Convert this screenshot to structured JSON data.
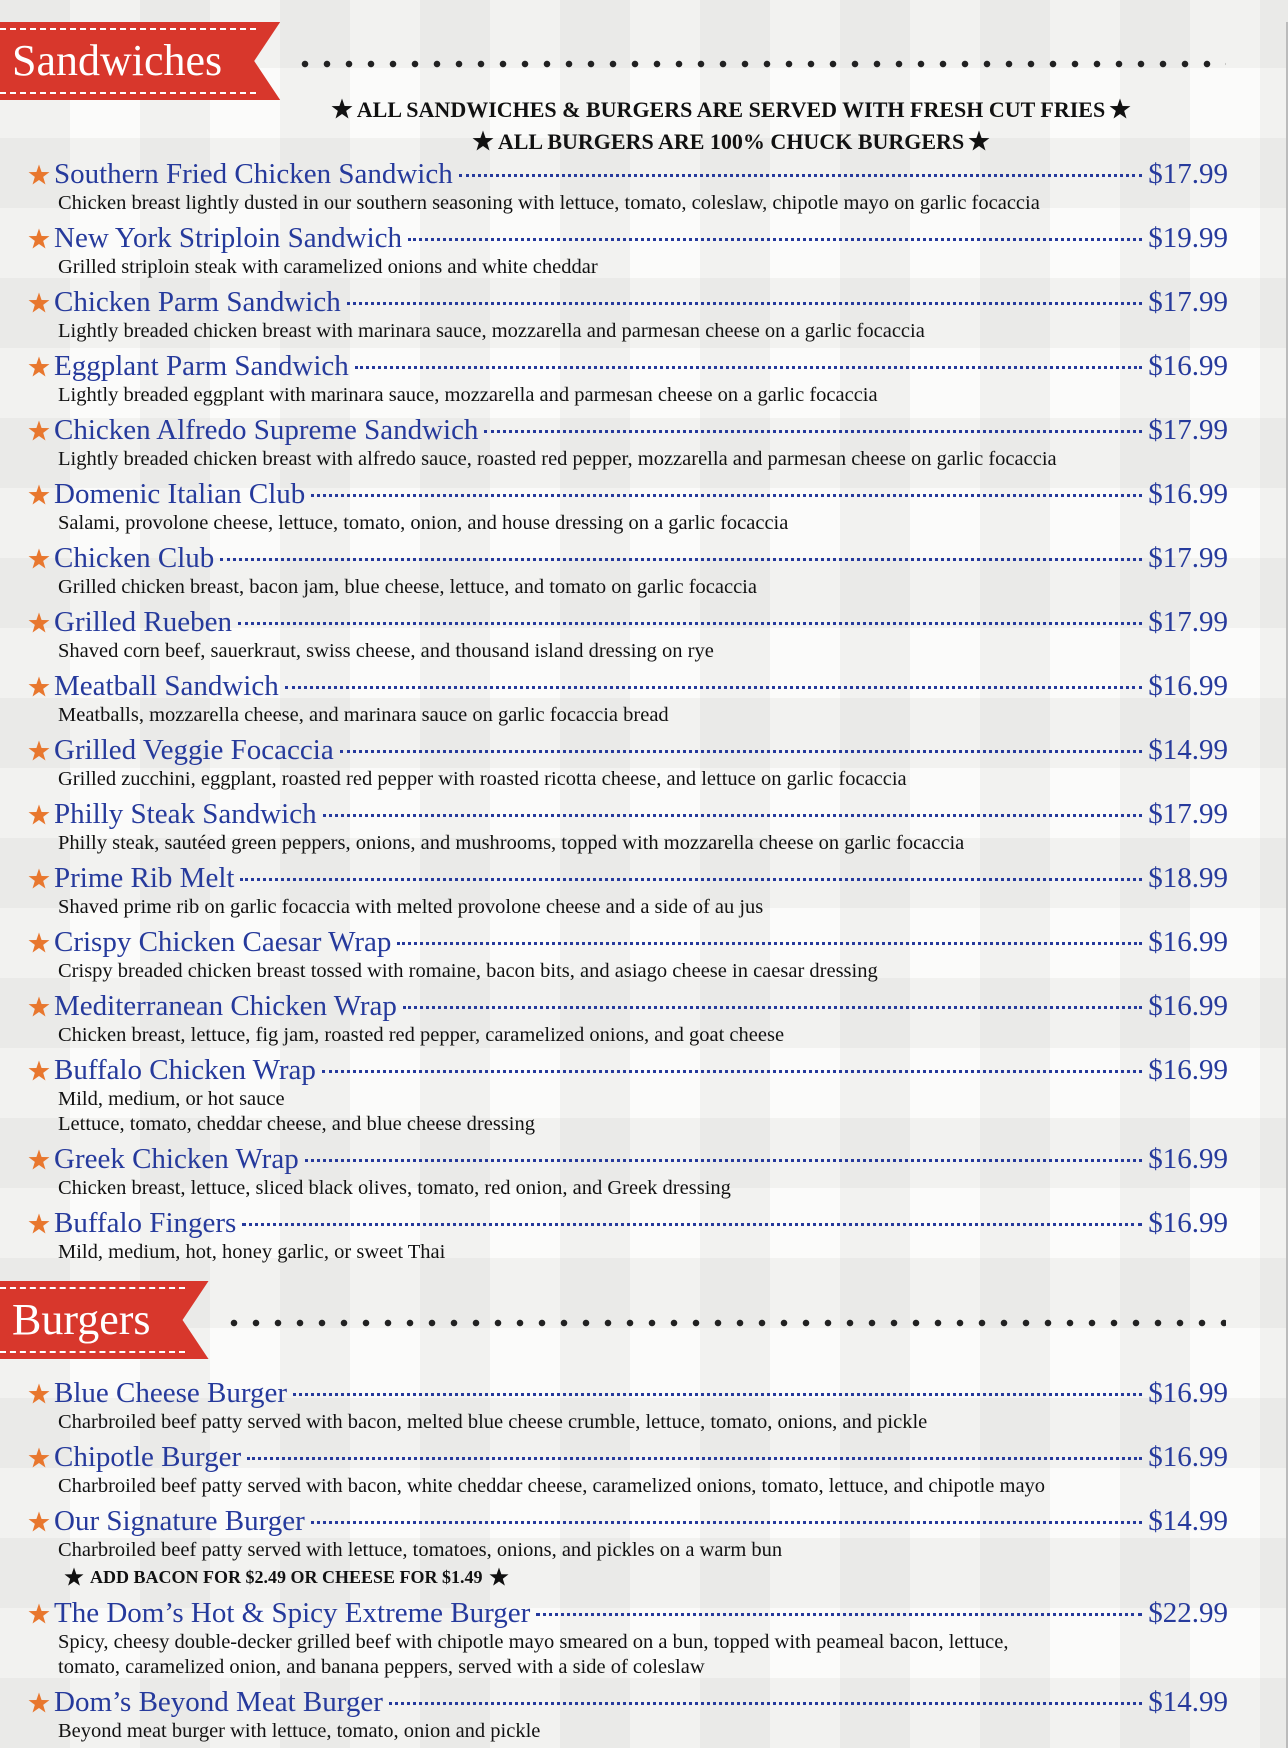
{
  "sections": [
    {
      "title": "Sandwiches",
      "notes": [
        "ALL SANDWICHES & BURGERS ARE SERVED WITH FRESH CUT FRIES",
        "ALL BURGERS ARE 100% CHUCK BURGERS"
      ],
      "items": [
        {
          "name": "Southern Fried Chicken Sandwich",
          "price": "$17.99",
          "description": [
            "Chicken breast lightly dusted in our southern seasoning with lettuce, tomato, coleslaw, chipotle mayo on garlic focaccia"
          ]
        },
        {
          "name": "New York Striploin Sandwich",
          "price": "$19.99",
          "description": [
            "Grilled striploin steak with caramelized onions and white cheddar"
          ]
        },
        {
          "name": "Chicken Parm Sandwich",
          "price": "$17.99",
          "description": [
            "Lightly breaded chicken breast with marinara sauce, mozzarella and parmesan cheese on a garlic focaccia"
          ]
        },
        {
          "name": "Eggplant Parm Sandwich",
          "price": "$16.99",
          "description": [
            "Lightly breaded eggplant with marinara sauce, mozzarella and parmesan cheese on a garlic focaccia"
          ]
        },
        {
          "name": "Chicken Alfredo Supreme Sandwich",
          "price": "$17.99",
          "description": [
            "Lightly breaded chicken breast with alfredo sauce, roasted red pepper, mozzarella and parmesan cheese on garlic focaccia"
          ]
        },
        {
          "name": "Domenic Italian Club",
          "price": "$16.99",
          "description": [
            "Salami, provolone cheese, lettuce, tomato, onion, and house dressing on a garlic focaccia"
          ]
        },
        {
          "name": "Chicken Club",
          "price": "$17.99",
          "description": [
            "Grilled chicken breast, bacon jam, blue cheese, lettuce, and tomato on garlic focaccia"
          ]
        },
        {
          "name": "Grilled Rueben",
          "price": "$17.99",
          "description": [
            "Shaved corn beef, sauerkraut, swiss cheese, and thousand island dressing on rye"
          ]
        },
        {
          "name": "Meatball Sandwich",
          "price": "$16.99",
          "description": [
            "Meatballs, mozzarella cheese, and marinara sauce on garlic focaccia bread"
          ]
        },
        {
          "name": "Grilled Veggie Focaccia",
          "price": "$14.99",
          "description": [
            "Grilled zucchini, eggplant, roasted red pepper with roasted ricotta cheese, and lettuce on garlic focaccia"
          ]
        },
        {
          "name": "Philly Steak Sandwich",
          "price": "$17.99",
          "description": [
            "Philly steak, sautéed green peppers, onions, and mushrooms, topped with mozzarella cheese on garlic focaccia"
          ]
        },
        {
          "name": "Prime Rib Melt",
          "price": "$18.99",
          "description": [
            "Shaved prime rib on garlic focaccia with melted provolone cheese and a side of au jus"
          ]
        },
        {
          "name": "Crispy Chicken Caesar Wrap",
          "price": "$16.99",
          "description": [
            "Crispy breaded chicken breast tossed with romaine, bacon bits, and asiago cheese in caesar dressing"
          ]
        },
        {
          "name": "Mediterranean Chicken Wrap",
          "price": "$16.99",
          "description": [
            "Chicken breast, lettuce, fig jam, roasted red pepper, caramelized onions, and goat cheese"
          ]
        },
        {
          "name": "Buffalo Chicken Wrap",
          "price": "$16.99",
          "description": [
            "Mild, medium, or hot sauce",
            "Lettuce, tomato, cheddar cheese, and blue cheese dressing"
          ]
        },
        {
          "name": "Greek Chicken Wrap",
          "price": "$16.99",
          "description": [
            "Chicken breast, lettuce, sliced black olives, tomato, red onion, and Greek dressing"
          ]
        },
        {
          "name": "Buffalo Fingers",
          "price": "$16.99",
          "description": [
            "Mild, medium, hot, honey garlic, or sweet Thai"
          ]
        }
      ]
    },
    {
      "title": "Burgers",
      "items": [
        {
          "name": "Blue Cheese Burger",
          "price": "$16.99",
          "description": [
            "Charbroiled beef patty served with bacon, melted blue cheese crumble, lettuce, tomato, onions, and pickle"
          ]
        },
        {
          "name": "Chipotle Burger",
          "price": "$16.99",
          "description": [
            "Charbroiled beef patty served with bacon, white cheddar cheese, caramelized onions, tomato, lettuce, and chipotle mayo"
          ]
        },
        {
          "name": "Our Signature Burger",
          "price": "$14.99",
          "description": [
            "Charbroiled beef patty served with lettuce, tomatoes, onions, and pickles on a warm bun"
          ],
          "note": "ADD BACON FOR $2.49 OR CHEESE FOR $1.49"
        },
        {
          "name": "The Dom’s Hot & Spicy Extreme Burger",
          "price": "$22.99",
          "description": [
            "Spicy, cheesy double-decker grilled beef with chipotle mayo smeared on a bun, topped with peameal bacon, lettuce,",
            "tomato, caramelized onion, and banana peppers, served with a side of coleslaw"
          ]
        },
        {
          "name": "Dom’s Beyond Meat Burger",
          "price": "$14.99",
          "description": [
            "Beyond meat burger with lettuce, tomato, onion and pickle"
          ]
        }
      ]
    }
  ]
}
